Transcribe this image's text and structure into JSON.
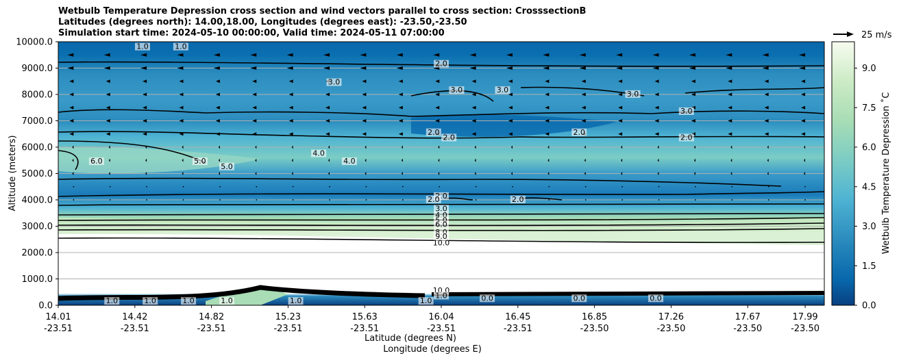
{
  "chart_data": {
    "type": "contour_cross_section",
    "title_lines": [
      "Wetbulb Temperature Depression cross section and wind vectors parallel to cross section: CrosssectionB",
      "Latitudes (degrees north): 14.00,18.00, Longitudes (degrees east): -23.50,-23.50",
      "Simulation start time: 2024-05-10 00:00:00, Valid time: 2024-05-11 07:00:00"
    ],
    "ylabel": "Altitude (meters)",
    "xlabel_lat": "Latitude (degrees N)",
    "xlabel_lon": "Longitude (degrees E)",
    "ylim": [
      0,
      10000
    ],
    "y_ticks": [
      0,
      1000,
      2000,
      3000,
      4000,
      5000,
      6000,
      7000,
      8000,
      9000,
      10000
    ],
    "y_tick_labels": [
      "0.0",
      "1000.0",
      "2000.0",
      "3000.0",
      "4000.0",
      "5000.0",
      "6000.0",
      "7000.0",
      "8000.0",
      "9000.0",
      "10000.0"
    ],
    "x_ticks": [
      {
        "pos": 0.0,
        "lat": "14.01",
        "lon": "-23.51"
      },
      {
        "pos": 0.1,
        "lat": "14.42",
        "lon": "-23.51"
      },
      {
        "pos": 0.2,
        "lat": "14.82",
        "lon": "-23.51"
      },
      {
        "pos": 0.3,
        "lat": "15.23",
        "lon": "-23.51"
      },
      {
        "pos": 0.4,
        "lat": "15.63",
        "lon": "-23.51"
      },
      {
        "pos": 0.5,
        "lat": "16.04",
        "lon": "-23.51"
      },
      {
        "pos": 0.6,
        "lat": "16.45",
        "lon": "-23.51"
      },
      {
        "pos": 0.7,
        "lat": "16.85",
        "lon": "-23.50"
      },
      {
        "pos": 0.8,
        "lat": "17.26",
        "lon": "-23.50"
      },
      {
        "pos": 0.9,
        "lat": "17.67",
        "lon": "-23.50"
      },
      {
        "pos": 0.975,
        "lat": "17.99",
        "lon": "-23.50"
      }
    ],
    "colorbar": {
      "label": "Wetbulb Temperature Depression ˚C",
      "range": [
        0,
        10
      ],
      "tick_values": [
        0.0,
        1.5,
        3.0,
        4.5,
        6.0,
        7.5,
        9.0
      ],
      "tick_labels": [
        "0.0",
        "1.5",
        "3.0",
        "4.5",
        "6.0",
        "7.5",
        "9.0"
      ],
      "colors": [
        "#084081",
        "#0868ac",
        "#1a7bb9",
        "#2b8cbe",
        "#3a9bc9",
        "#4eb3d3",
        "#67c0d0",
        "#7bccc4",
        "#96d6c4",
        "#a8ddb5",
        "#bbe5bf",
        "#ccebc5",
        "#dcf1d8",
        "#e0f3db",
        "#edf8e8",
        "#f7fcf0"
      ]
    },
    "wind_key": {
      "label": "25 m/s"
    },
    "contour_labels": [
      {
        "text": "1.0",
        "x": 0.11,
        "y": 9750
      },
      {
        "text": "1.0",
        "x": 0.16,
        "y": 9750
      },
      {
        "text": "2.0",
        "x": 0.5,
        "y": 9100
      },
      {
        "text": "3.0",
        "x": 0.36,
        "y": 8400
      },
      {
        "text": "3.0",
        "x": 0.52,
        "y": 8100
      },
      {
        "text": "3.0",
        "x": 0.58,
        "y": 8100
      },
      {
        "text": "3.0",
        "x": 0.75,
        "y": 7950
      },
      {
        "text": "3.0",
        "x": 0.82,
        "y": 7300
      },
      {
        "text": "2.0",
        "x": 0.49,
        "y": 6500
      },
      {
        "text": "2.0",
        "x": 0.51,
        "y": 6300
      },
      {
        "text": "2.0",
        "x": 0.68,
        "y": 6500
      },
      {
        "text": "2.0",
        "x": 0.82,
        "y": 6300
      },
      {
        "text": "6.0",
        "x": 0.05,
        "y": 5400
      },
      {
        "text": "5.0",
        "x": 0.185,
        "y": 5400
      },
      {
        "text": "5.0",
        "x": 0.22,
        "y": 5200
      },
      {
        "text": "4.0",
        "x": 0.34,
        "y": 5700
      },
      {
        "text": "4.0",
        "x": 0.38,
        "y": 5400
      },
      {
        "text": "2.0",
        "x": 0.5,
        "y": 4080
      },
      {
        "text": "2.0",
        "x": 0.49,
        "y": 3950
      },
      {
        "text": "2.0",
        "x": 0.6,
        "y": 3950
      },
      {
        "text": "3.0",
        "x": 0.5,
        "y": 3600
      },
      {
        "text": "4.0",
        "x": 0.5,
        "y": 3350
      },
      {
        "text": "5.0",
        "x": 0.5,
        "y": 3150
      },
      {
        "text": "6.0",
        "x": 0.5,
        "y": 3000
      },
      {
        "text": "8.0",
        "x": 0.5,
        "y": 2700
      },
      {
        "text": "9.0",
        "x": 0.5,
        "y": 2550
      },
      {
        "text": "10.0",
        "x": 0.5,
        "y": 2300
      },
      {
        "text": "1.0",
        "x": 0.07,
        "y": 100
      },
      {
        "text": "1.0",
        "x": 0.12,
        "y": 100
      },
      {
        "text": "1.0",
        "x": 0.17,
        "y": 100
      },
      {
        "text": "1.0",
        "x": 0.22,
        "y": 100
      },
      {
        "text": "1.0",
        "x": 0.31,
        "y": 100
      },
      {
        "text": "1.0",
        "x": 0.48,
        "y": 100
      },
      {
        "text": "10.0",
        "x": 0.5,
        "y": 500
      },
      {
        "text": "1.0",
        "x": 0.5,
        "y": 300
      },
      {
        "text": "0.0",
        "x": 0.56,
        "y": 200
      },
      {
        "text": "0.0",
        "x": 0.68,
        "y": 200
      },
      {
        "text": "0.0",
        "x": 0.78,
        "y": 200
      }
    ]
  }
}
